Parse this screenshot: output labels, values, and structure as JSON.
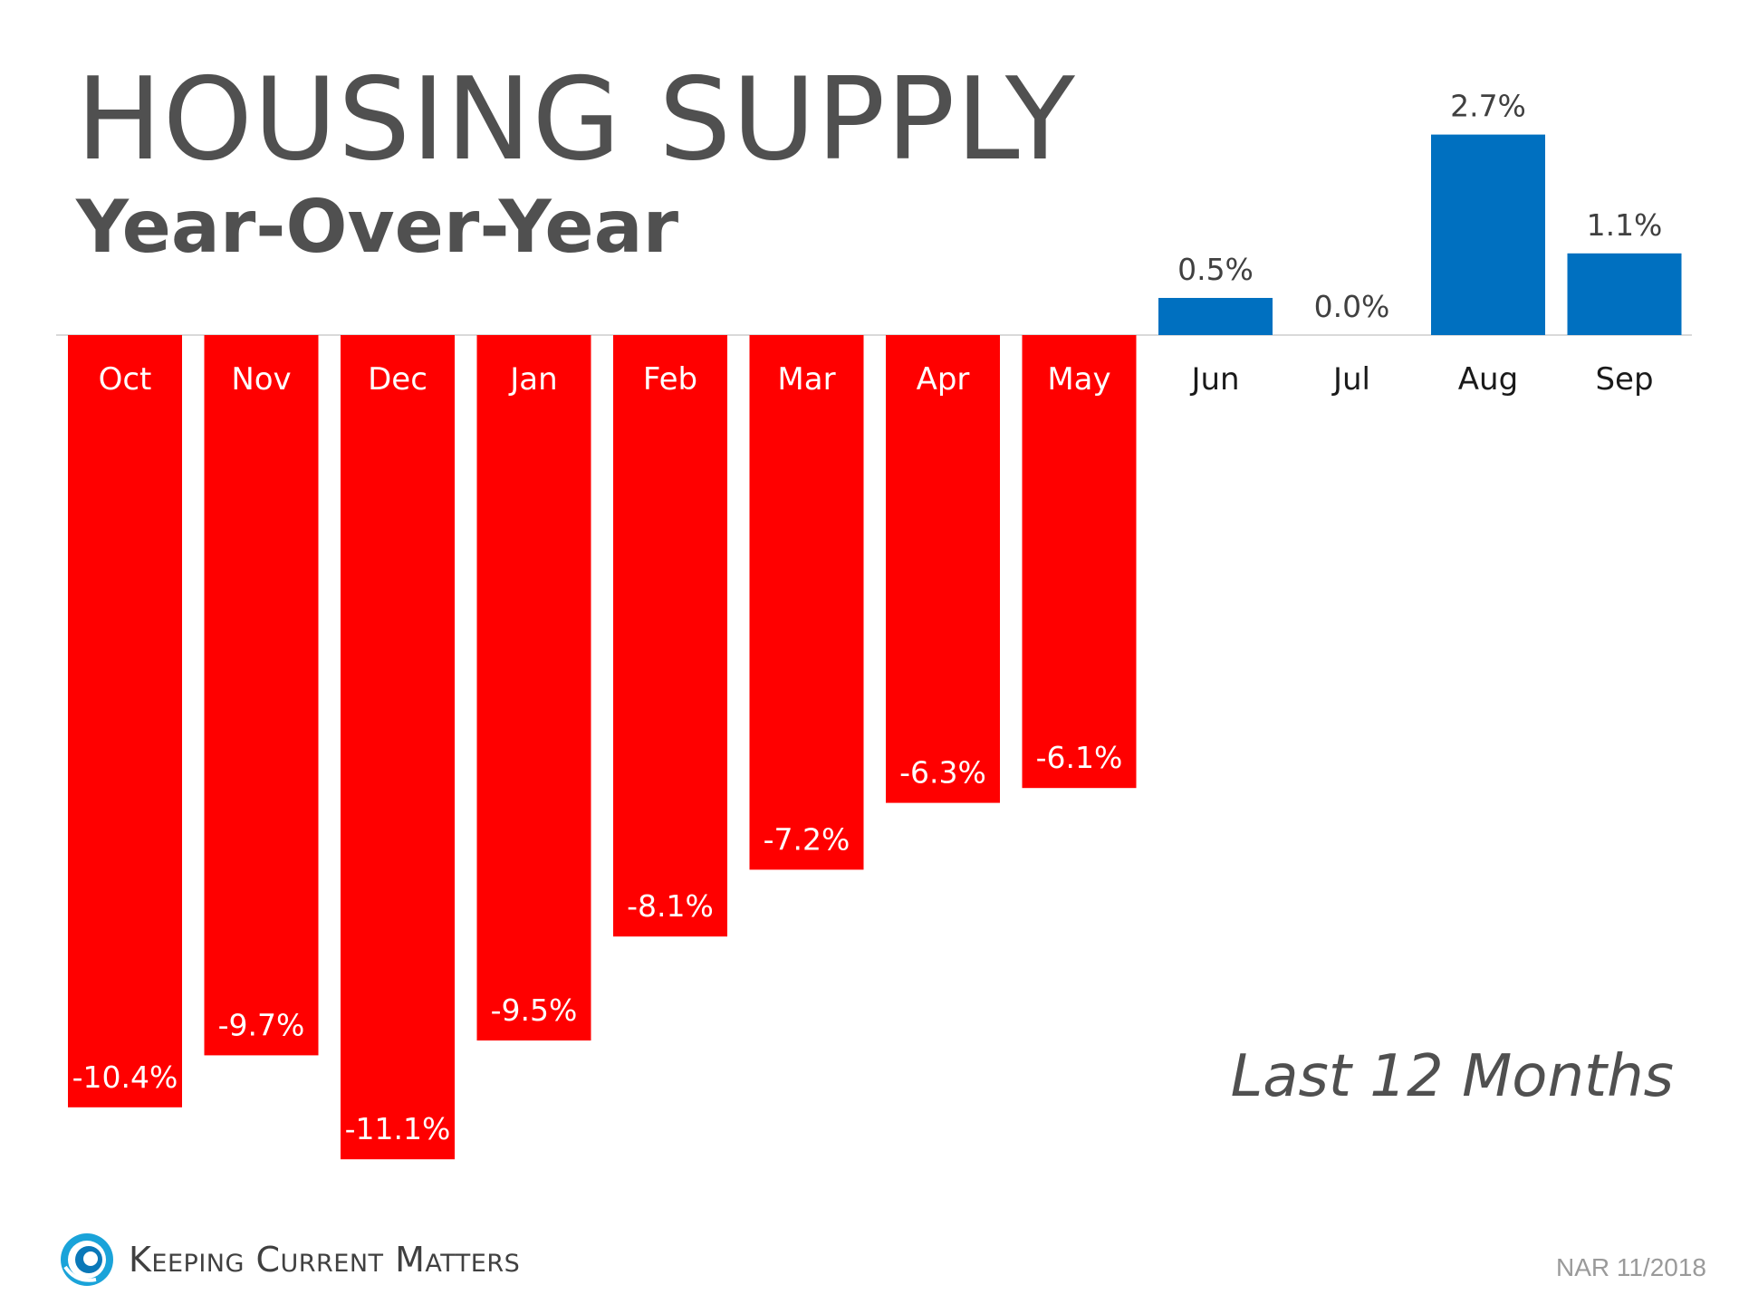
{
  "header": {
    "title": "HOUSING SUPPLY",
    "subtitle": "Year-Over-Year"
  },
  "period_label": "Last 12 Months",
  "source": "NAR 11/2018",
  "brand": {
    "name": "Keeping Current Matters",
    "logo_icon": "spiral-logo-icon"
  },
  "colors": {
    "negative": "#FF0000",
    "positive": "#0070C0",
    "text": "#505050",
    "baseline": "#d9d9d9"
  },
  "chart_data": {
    "type": "bar",
    "title": "HOUSING SUPPLY",
    "subtitle": "Year-Over-Year",
    "categories": [
      "Oct",
      "Nov",
      "Dec",
      "Jan",
      "Feb",
      "Mar",
      "Apr",
      "May",
      "Jun",
      "Jul",
      "Aug",
      "Sep"
    ],
    "values": [
      -10.4,
      -9.7,
      -11.1,
      -9.5,
      -8.1,
      -7.2,
      -6.3,
      -6.1,
      0.5,
      0.0,
      2.7,
      1.1
    ],
    "data_labels": [
      "-10.4%",
      "-9.7%",
      "-11.1%",
      "-9.5%",
      "-8.1%",
      "-7.2%",
      "-6.3%",
      "-6.1%",
      "0.5%",
      "0.0%",
      "2.7%",
      "1.1%"
    ],
    "unit": "%",
    "xlabel": "",
    "ylabel": "",
    "ylim": [
      -11.1,
      2.7
    ],
    "grid": false,
    "legend": "none"
  }
}
